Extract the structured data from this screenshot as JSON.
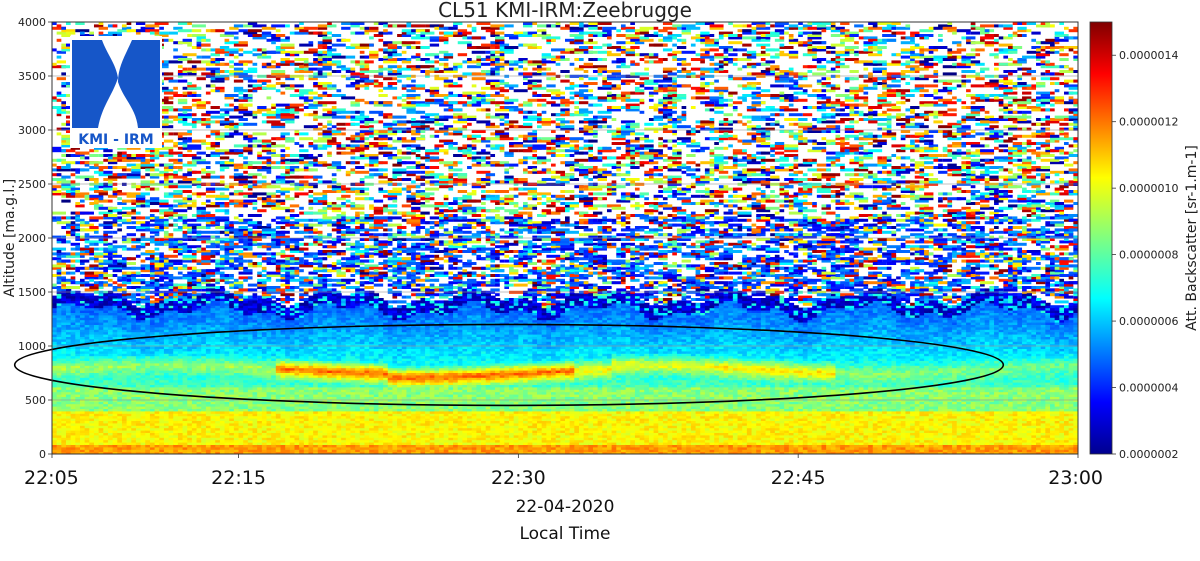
{
  "chart_data": {
    "type": "heatmap",
    "title": "CL51 KMI-IRM:Zeebrugge",
    "xlabel_date": "22-04-2020",
    "xlabel": "Local Time",
    "ylabel": "Altitude [ma.g.l.]",
    "x_ticks": [
      "22:05",
      "22:15",
      "22:30",
      "22:45",
      "23:00"
    ],
    "x_tick_minutes": [
      0,
      10,
      25,
      40,
      55
    ],
    "x_range_minutes": [
      0,
      55
    ],
    "y_ticks": [
      0,
      500,
      1000,
      1500,
      2000,
      2500,
      3000,
      3500,
      4000
    ],
    "ylim": [
      0,
      4000
    ],
    "grid": true,
    "colorbar": {
      "label": "Att. Backscatter [sr-1.m-1]",
      "ticks": [
        "0.0000002",
        "0.0000004",
        "0.0000006",
        "0.0000008",
        "0.0000010",
        "0.0000012",
        "0.0000014"
      ],
      "tick_values": [
        2e-07,
        4e-07,
        6e-07,
        8e-07,
        1e-06,
        1.2e-06,
        1.4e-06
      ],
      "range": [
        2e-07,
        1.5e-06
      ],
      "colormap": "jet"
    },
    "layers": [
      {
        "name": "surface",
        "altitude_range": [
          0,
          400
        ],
        "approx_value": 1.05e-06
      },
      {
        "name": "boundary layer",
        "altitude_range": [
          400,
          1300
        ],
        "approx_value": 7e-07
      },
      {
        "name": "elevated aerosol layer",
        "altitude_range": [
          650,
          900
        ],
        "approx_value": 1.3e-06
      },
      {
        "name": "layer top",
        "altitude_range": [
          1300,
          1450
        ],
        "approx_value": 3e-07
      }
    ],
    "annotation": {
      "shape": "ellipse",
      "x_range_minutes": [
        -2,
        51
      ],
      "altitude_range": [
        450,
        1200
      ]
    }
  },
  "logo": {
    "text": "KMI - IRM"
  }
}
